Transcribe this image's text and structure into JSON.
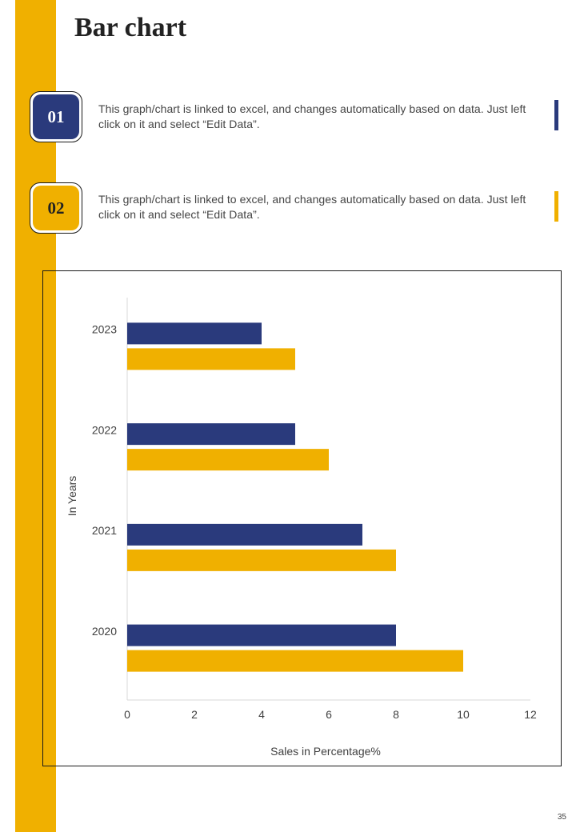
{
  "page": {
    "title": "Bar chart",
    "page_number": "35",
    "colors": {
      "accent_navy": "#2A3A7C",
      "accent_gold": "#F0B000"
    }
  },
  "items": [
    {
      "number": "01",
      "text": "This graph/chart is linked to excel, and changes automatically  based on data. Just left click on it and select “Edit Data”."
    },
    {
      "number": "02",
      "text": "This graph/chart is linked to excel, and changes automatically  based on data. Just left click on it and select “Edit Data”."
    }
  ],
  "chart_data": {
    "type": "bar",
    "orientation": "horizontal",
    "categories": [
      "2020",
      "2021",
      "2022",
      "2023"
    ],
    "series": [
      {
        "values": [
          8,
          7,
          5,
          4
        ],
        "color": "#2A3A7C"
      },
      {
        "values": [
          10,
          8,
          6,
          5
        ],
        "color": "#F0B000"
      }
    ],
    "xlabel": "Sales in Percentage%",
    "ylabel": "In Years",
    "xlim": [
      0,
      12
    ],
    "xticks": [
      "0",
      "2",
      "4",
      "6",
      "8",
      "10",
      "12"
    ],
    "grid": false,
    "legend": "none"
  }
}
